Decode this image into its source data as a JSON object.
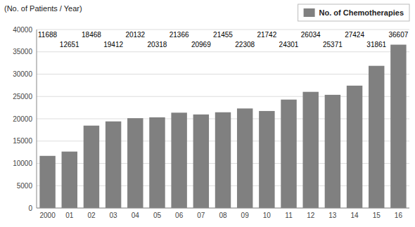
{
  "chart_data": {
    "type": "bar",
    "y_label": "(No. of Patients / Year)",
    "categories": [
      "2000",
      "01",
      "02",
      "03",
      "04",
      "05",
      "06",
      "07",
      "08",
      "09",
      "10",
      "11",
      "12",
      "13",
      "14",
      "15",
      "16"
    ],
    "series": [
      {
        "name": "No. of Chemotherapies",
        "color": "#808080",
        "values": [
          11688,
          12651,
          18468,
          19412,
          20132,
          20318,
          21366,
          20969,
          21455,
          22308,
          21742,
          24301,
          26034,
          25371,
          27424,
          31861,
          36607
        ]
      }
    ],
    "ylim": [
      0,
      40000
    ],
    "yticks": [
      0,
      5000,
      10000,
      15000,
      20000,
      25000,
      30000,
      35000,
      40000
    ],
    "grid": true,
    "legend": "upper right",
    "data_labels": true
  }
}
